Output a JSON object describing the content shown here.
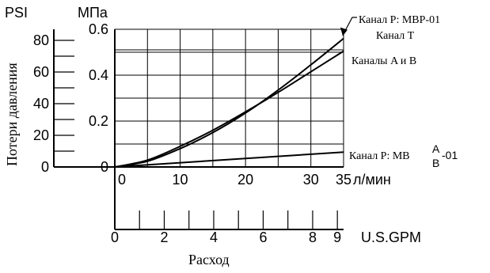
{
  "chart_data": {
    "type": "line",
    "title": "",
    "axes": {
      "psi": {
        "unit": "PSI",
        "range": [
          0,
          87
        ],
        "ticks": [
          0,
          20,
          40,
          60,
          80
        ]
      },
      "mpa": {
        "unit": "МПа",
        "range": [
          0,
          0.6
        ],
        "ticks": [
          "0",
          "0.2",
          "0.4",
          "0.6"
        ]
      },
      "lpm": {
        "unit": "л/мин",
        "range": [
          0,
          35
        ],
        "ticks": [
          0,
          10,
          20,
          30,
          35
        ]
      },
      "gpm": {
        "unit": "U.S.GPM",
        "range": [
          0,
          9.25
        ],
        "ticks": [
          0,
          2,
          4,
          6,
          8,
          9
        ]
      },
      "ylabel": "Потери давления",
      "xlabel": "Расход"
    },
    "series": [
      {
        "id": "p_mbp_t",
        "labels": [
          "Канал P: MBP-01",
          "Канал T"
        ],
        "points": [
          [
            0,
            0
          ],
          [
            5,
            0.025
          ],
          [
            10,
            0.08
          ],
          [
            15,
            0.15
          ],
          [
            20,
            0.235
          ],
          [
            25,
            0.335
          ],
          [
            30,
            0.445
          ],
          [
            35,
            0.56
          ]
        ]
      },
      {
        "id": "ab",
        "labels": [
          "Каналы A и B"
        ],
        "points": [
          [
            0,
            0
          ],
          [
            5,
            0.03
          ],
          [
            10,
            0.09
          ],
          [
            15,
            0.16
          ],
          [
            20,
            0.24
          ],
          [
            25,
            0.325
          ],
          [
            30,
            0.415
          ],
          [
            35,
            0.505
          ]
        ]
      },
      {
        "id": "p_mbab",
        "label_prefix": "Канал P: MB",
        "label_sup": "A",
        "label_sub": "B",
        "label_suffix": "-01",
        "points": [
          [
            0,
            0
          ],
          [
            35,
            0.065
          ]
        ]
      }
    ],
    "grid": true
  }
}
